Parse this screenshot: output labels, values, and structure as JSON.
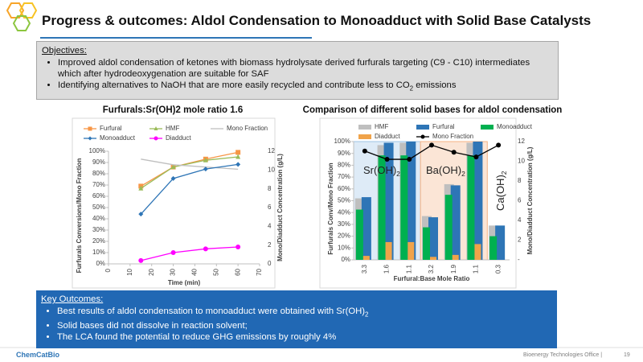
{
  "header": {
    "title": "Progress & outcomes: Aldol Condensation to Monoadduct with Solid Base Catalysts"
  },
  "objectives": {
    "heading": "Objectives:",
    "bullets": [
      {
        "text": "Improved aldol condensation of ketones with biomass hydrolysate derived furfurals targeting (C9 - C10) intermediates which after hydrodeoxygenation are suitable for SAF"
      },
      {
        "text": "Identifying alternatives to NaOH that are more easily recycled and contribute less to CO",
        "sub": "2",
        "tail": " emissions"
      }
    ]
  },
  "chart_data": [
    {
      "type": "line",
      "title": "Furfurals:Sr(OH)2 mole ratio 1.6",
      "x_label": "Time (min)",
      "y_label": "Furfurals Conversions/Mono Fraction",
      "y2_label": "Mono/Diadduct Concentration (g/L)",
      "x": [
        15,
        30,
        45,
        60
      ],
      "xlim": [
        0,
        70
      ],
      "xticks": [
        0,
        10,
        20,
        30,
        40,
        50,
        60,
        70
      ],
      "ylim": [
        0,
        100
      ],
      "yticks": [
        {
          "value": 0,
          "label": "0%"
        },
        {
          "value": 10,
          "label": "10%"
        },
        {
          "value": 20,
          "label": "20%"
        },
        {
          "value": 30,
          "label": "30%"
        },
        {
          "value": 40,
          "label": "40%"
        },
        {
          "value": 50,
          "label": "50%"
        },
        {
          "value": 60,
          "label": "60%"
        },
        {
          "value": 70,
          "label": "70%"
        },
        {
          "value": 80,
          "label": "80%"
        },
        {
          "value": 90,
          "label": "90%"
        },
        {
          "value": 100,
          "label": "100%"
        }
      ],
      "y2lim": [
        0,
        12
      ],
      "y2ticks": [
        0,
        2,
        4,
        6,
        8,
        10,
        12
      ],
      "series": [
        {
          "name": "Furfural",
          "color": "#f79646",
          "marker": "square",
          "values": [
            69,
            86,
            93,
            99
          ]
        },
        {
          "name": "HMF",
          "color": "#9bbb59",
          "marker": "triangle",
          "values": [
            67,
            86,
            92,
            95
          ]
        },
        {
          "name": "Mono Fraction",
          "color": "#bfbfbf",
          "marker": "none",
          "values": [
            93,
            88,
            86,
            84
          ]
        },
        {
          "name": "Monoadduct",
          "color": "#2e75b6",
          "marker": "diamond",
          "axis": "y2",
          "values": [
            5.3,
            9.1,
            10.1,
            10.6
          ]
        },
        {
          "name": "Diadduct",
          "color": "#ff00ff",
          "marker": "circle",
          "axis": "y2",
          "values": [
            0.35,
            1.2,
            1.6,
            1.8
          ]
        }
      ]
    },
    {
      "type": "bar",
      "title": "Comparison of different solid bases for aldol condensation",
      "x_label": "Furfural:Base Mole Ratio",
      "y_label": "Furfurals Conv/Mono Fraction",
      "y2_label": "Mono/Diadduct Concentration (g/L)",
      "categories": [
        "3.3",
        "1.6",
        "1.1",
        "3.2",
        "1.9",
        "1.1",
        "0.3"
      ],
      "ylim": [
        0,
        100
      ],
      "yticks": [
        {
          "value": 0,
          "label": "0%"
        },
        {
          "value": 10,
          "label": "10%"
        },
        {
          "value": 20,
          "label": "20%"
        },
        {
          "value": 30,
          "label": "30%"
        },
        {
          "value": 40,
          "label": "40%"
        },
        {
          "value": 50,
          "label": "50%"
        },
        {
          "value": 60,
          "label": "60%"
        },
        {
          "value": 70,
          "label": "70%"
        },
        {
          "value": 80,
          "label": "80%"
        },
        {
          "value": 90,
          "label": "90%"
        },
        {
          "value": 100,
          "label": "100%"
        }
      ],
      "y2lim": [
        0,
        12
      ],
      "y2ticks": [
        {
          "value": 0,
          "label": "-"
        },
        2,
        4,
        6,
        8,
        10,
        12
      ],
      "series": [
        {
          "name": "HMF",
          "color": "#bfbfbf",
          "values": [
            52,
            97,
            99,
            37,
            64,
            99,
            29
          ]
        },
        {
          "name": "Furfural",
          "color": "#2e75b6",
          "values": [
            53,
            99,
            100,
            36,
            63,
            100,
            29
          ]
        },
        {
          "name": "Monoadduct",
          "color": "#00b050",
          "axis": "y2",
          "values": [
            5.1,
            10.6,
            10.6,
            3.3,
            6.6,
            10.6,
            2.4
          ]
        },
        {
          "name": "Diadduct",
          "color": "#f0a34a",
          "axis": "y2",
          "values": [
            0.4,
            1.8,
            1.8,
            0.3,
            0.5,
            1.6,
            0
          ]
        },
        {
          "name": "Mono Fraction",
          "color": "#000000",
          "type": "line",
          "marker": "circle",
          "values": [
            92,
            85,
            85,
            97,
            91,
            87,
            97
          ]
        }
      ],
      "annotations": [
        {
          "text": "Sr(OH)",
          "sub": "2"
        },
        {
          "text": "Ba(OH)",
          "sub": "2"
        },
        {
          "text": "Ca(OH)",
          "sub": "2"
        }
      ]
    }
  ],
  "outcomes": {
    "heading": "Key Outcomes:",
    "bullets": [
      {
        "text": "Best results of aldol condensation to monoadduct were obtained with Sr(OH)",
        "sub": "2"
      },
      {
        "text": "Solid bases did not dissolve in reaction solvent;"
      },
      {
        "text": "The LCA found the potential to reduce GHG emissions by roughly 4%"
      }
    ]
  },
  "footer": {
    "logo": "ChemCatBio",
    "office": "Bioenergy Technologies Office |",
    "page": "19"
  }
}
